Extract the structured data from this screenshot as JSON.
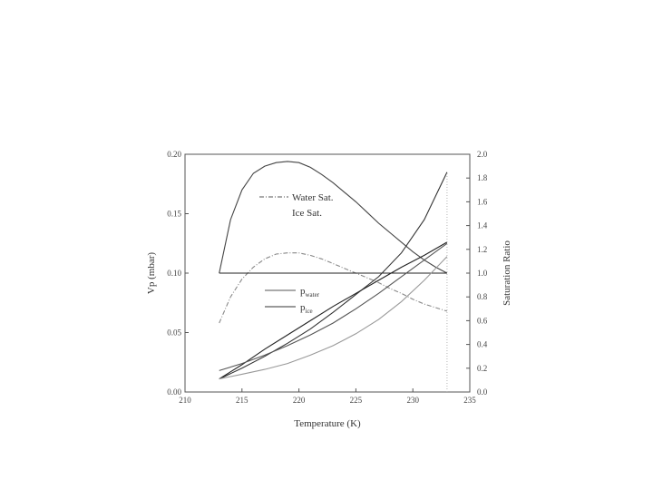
{
  "chart_data": {
    "type": "line",
    "xlabel": "Temperature (K)",
    "ylabel_left": "Vp (mbar)",
    "ylabel_right": "Saturation Ratio",
    "xlim": [
      210,
      235
    ],
    "ylim_left": [
      0.0,
      0.2
    ],
    "ylim_right": [
      0.0,
      2.0
    ],
    "x_ticks": [
      "210",
      "215",
      "220",
      "225",
      "230",
      "235"
    ],
    "y_left_ticks": [
      "0.00",
      "0.05",
      "0.10",
      "0.15",
      "0.20"
    ],
    "y_right_ticks": [
      "0.0",
      "0.2",
      "0.4",
      "0.6",
      "0.8",
      "1.0",
      "1.2",
      "1.4",
      "1.6",
      "1.8",
      "2.0"
    ],
    "legend_top": [
      {
        "label": "Water Sat.",
        "style": "dash-dot"
      },
      {
        "label": "Ice Sat.",
        "style": "none"
      }
    ],
    "legend_bottom": [
      {
        "label": "p",
        "sub": "water",
        "style": "solid"
      },
      {
        "label": "p",
        "sub": "ice",
        "style": "solid"
      }
    ],
    "series": [
      {
        "axis": "right",
        "color": "#444444",
        "style": "solid",
        "x": [
          213,
          214,
          215,
          216,
          217,
          218,
          219,
          220,
          221,
          222,
          223,
          224,
          225,
          226,
          227,
          228,
          229,
          230,
          231,
          232,
          233
        ],
        "y": [
          1.0,
          1.45,
          1.7,
          1.84,
          1.9,
          1.93,
          1.94,
          1.93,
          1.89,
          1.83,
          1.76,
          1.68,
          1.6,
          1.51,
          1.42,
          1.34,
          1.26,
          1.18,
          1.11,
          1.05,
          1.0
        ]
      },
      {
        "axis": "right",
        "color": "#888888",
        "style": "dash-dot",
        "x": [
          213,
          214,
          215,
          216,
          217,
          218,
          219,
          220,
          221,
          222,
          223,
          224,
          225,
          226,
          227,
          228,
          229,
          230,
          231,
          232,
          233
        ],
        "y": [
          0.58,
          0.8,
          0.95,
          1.05,
          1.12,
          1.16,
          1.17,
          1.17,
          1.15,
          1.12,
          1.08,
          1.04,
          1.0,
          0.96,
          0.92,
          0.87,
          0.83,
          0.78,
          0.74,
          0.71,
          0.68
        ]
      },
      {
        "axis": "right",
        "color": "#222222",
        "style": "solid",
        "x": [
          213,
          233
        ],
        "y": [
          1.0,
          1.0
        ]
      },
      {
        "axis": "left",
        "color": "#333333",
        "style": "solid",
        "x": [
          213,
          215,
          217,
          219,
          221,
          223,
          225,
          227,
          229,
          231,
          233
        ],
        "y": [
          0.011,
          0.02,
          0.03,
          0.041,
          0.053,
          0.067,
          0.082,
          0.097,
          0.117,
          0.145,
          0.185
        ]
      },
      {
        "axis": "left",
        "color": "#222222",
        "style": "solid",
        "x": [
          213,
          215,
          217,
          219,
          221,
          223,
          225,
          227,
          229,
          231,
          233
        ],
        "y": [
          0.011,
          0.023,
          0.036,
          0.048,
          0.06,
          0.072,
          0.083,
          0.094,
          0.105,
          0.115,
          0.126
        ]
      },
      {
        "axis": "left",
        "color": "#555555",
        "style": "solid",
        "x": [
          213,
          215,
          217,
          219,
          221,
          223,
          225,
          227,
          229,
          231,
          233
        ],
        "y": [
          0.018,
          0.024,
          0.031,
          0.039,
          0.048,
          0.058,
          0.07,
          0.083,
          0.097,
          0.111,
          0.125
        ]
      },
      {
        "axis": "left",
        "color": "#999999",
        "style": "solid",
        "x": [
          213,
          215,
          217,
          219,
          221,
          223,
          225,
          227,
          229,
          231,
          233
        ],
        "y": [
          0.011,
          0.015,
          0.019,
          0.024,
          0.031,
          0.039,
          0.049,
          0.061,
          0.076,
          0.094,
          0.114
        ]
      },
      {
        "axis": "left",
        "color": "#bbbbbb",
        "style": "dotted",
        "x": [
          233,
          233
        ],
        "y": [
          0.0,
          0.185
        ]
      }
    ]
  }
}
